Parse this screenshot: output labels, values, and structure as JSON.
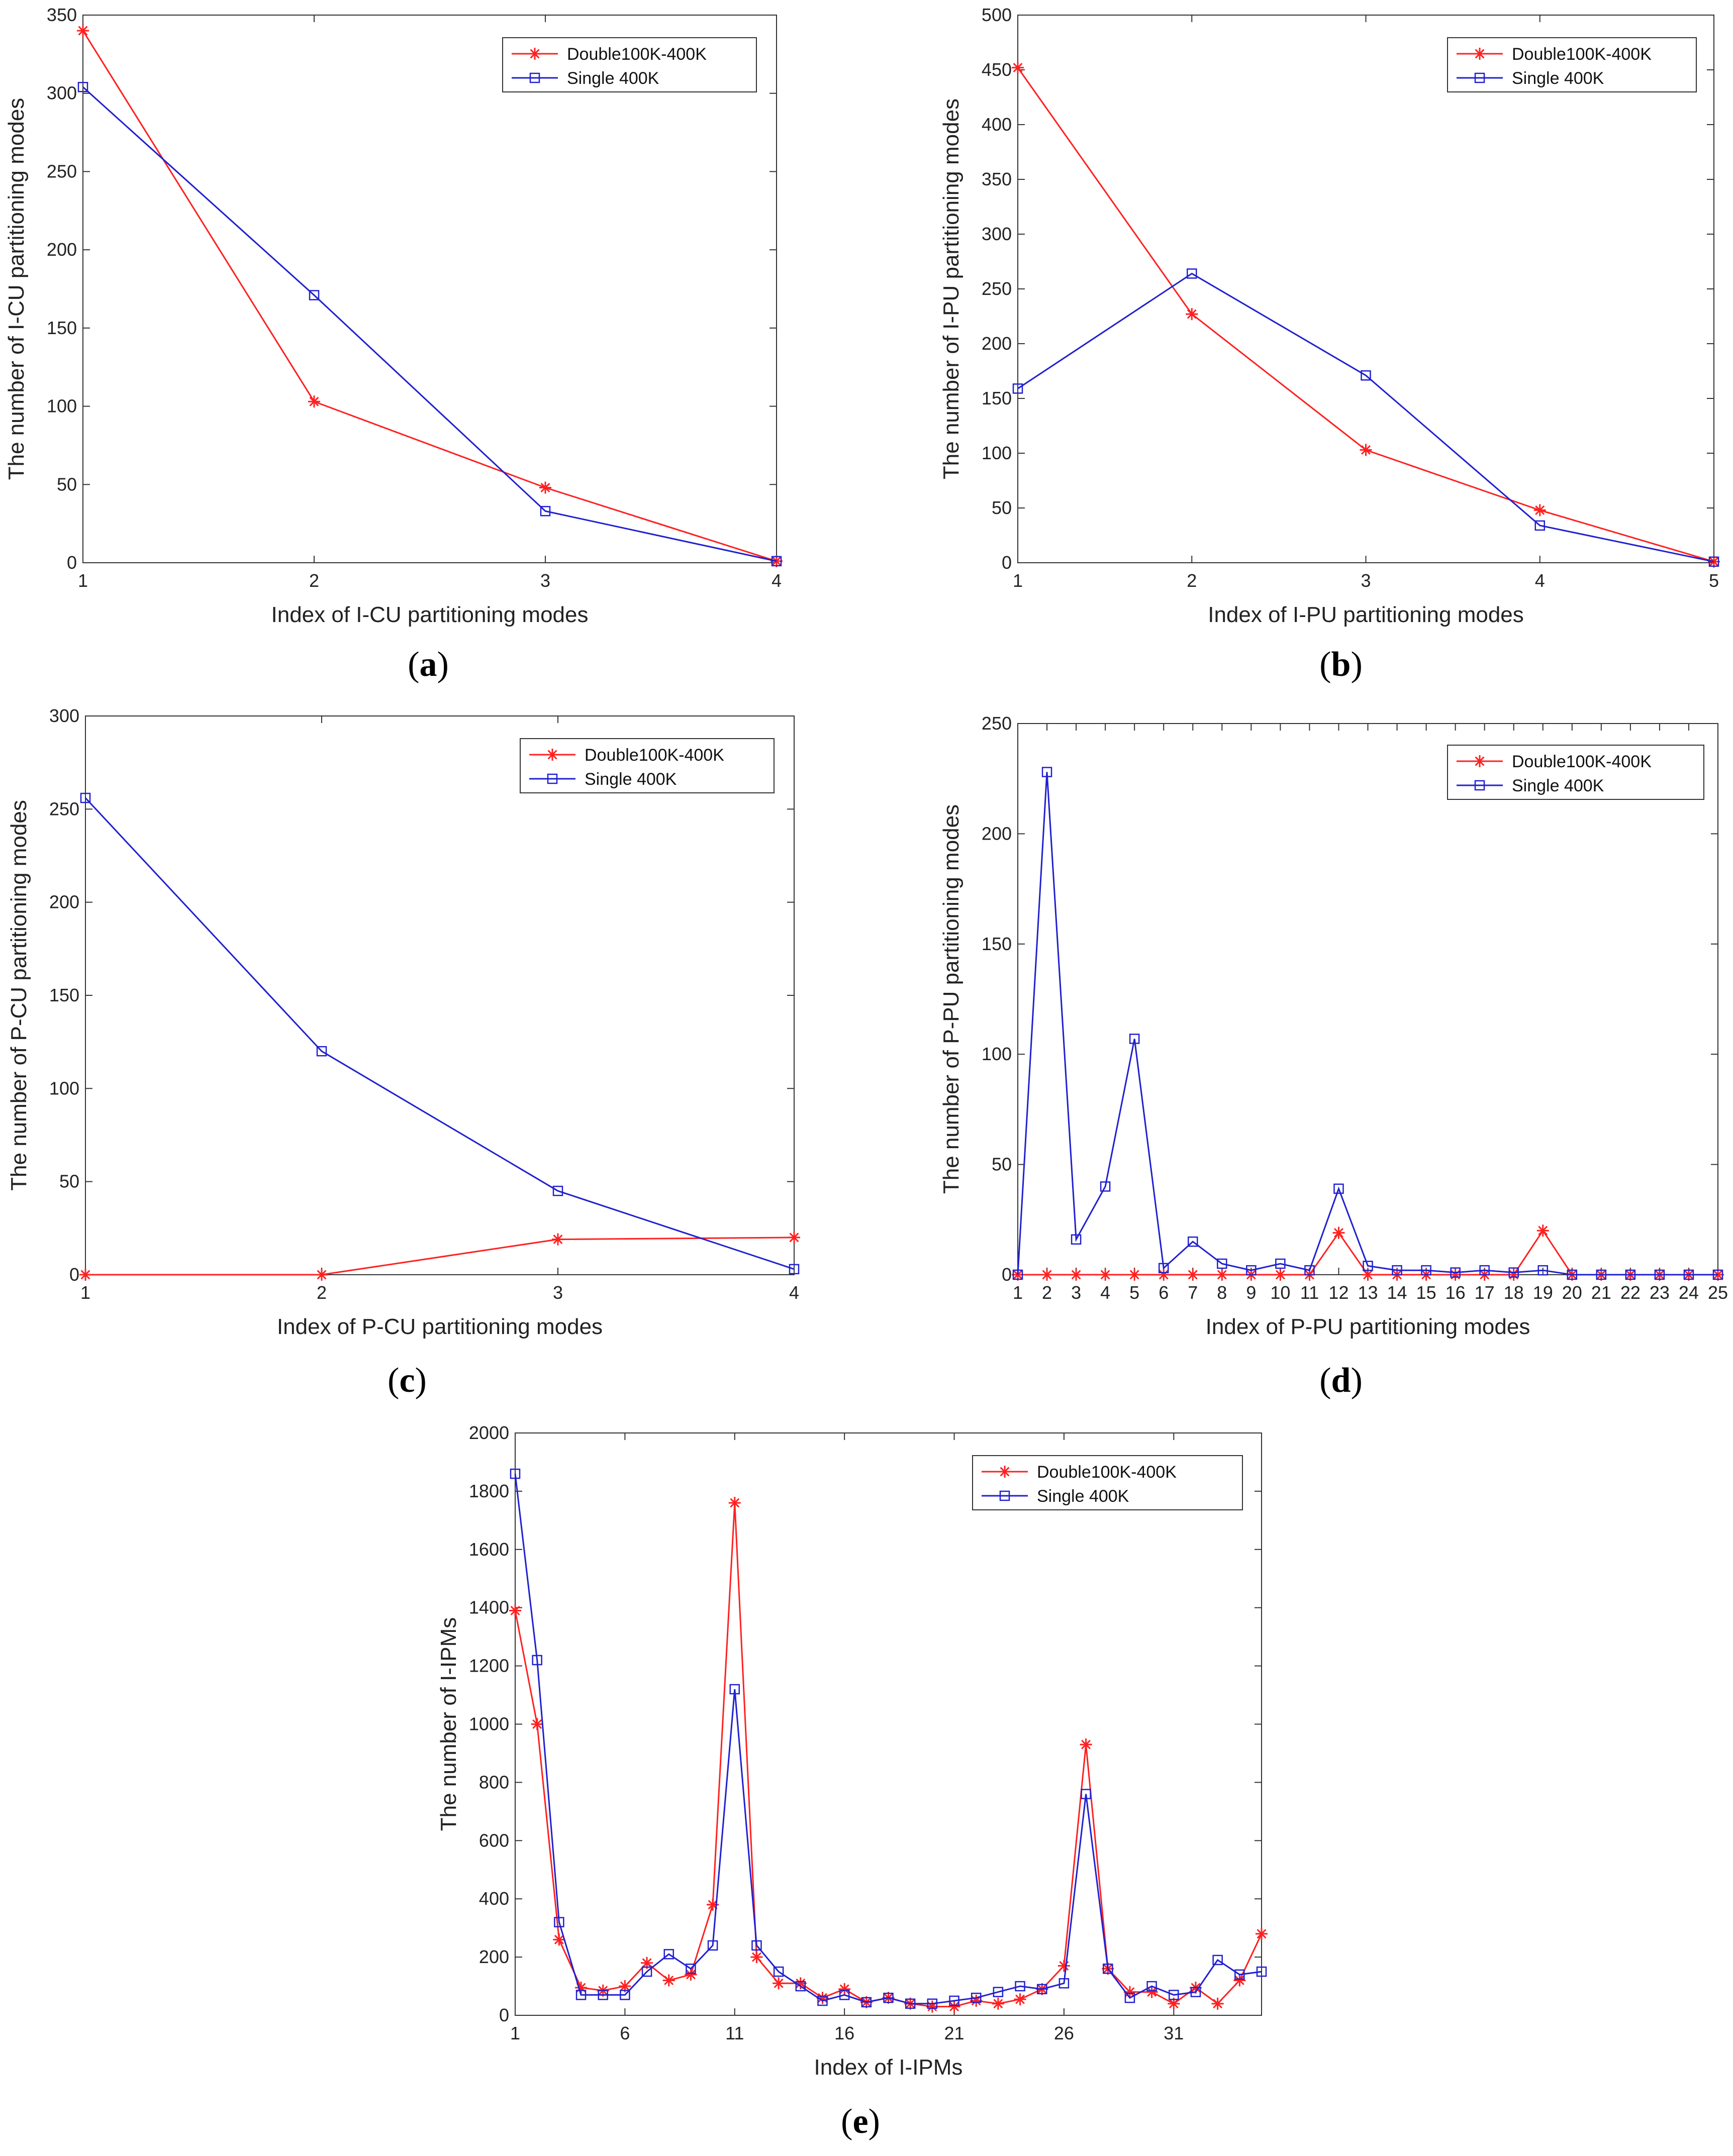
{
  "chart_data": [
    {
      "id": "a",
      "type": "line",
      "caption": "a",
      "xlabel": "Index of I-CU partitioning modes",
      "ylabel": "The number of I-CU partitioning modes",
      "xlim": [
        1,
        4
      ],
      "ylim": [
        0,
        350
      ],
      "xticks": [
        1,
        2,
        3,
        4
      ],
      "yticks": [
        0,
        50,
        100,
        150,
        200,
        250,
        300,
        350
      ],
      "legend": [
        "Double100K-400K",
        "Single 400K"
      ],
      "series": [
        {
          "name": "Double100K-400K",
          "color": "#ff2020",
          "marker": "star",
          "x": [
            1,
            2,
            3,
            4
          ],
          "values": [
            340,
            103,
            48,
            1
          ]
        },
        {
          "name": "Single 400K",
          "color": "#2020d0",
          "marker": "square",
          "x": [
            1,
            2,
            3,
            4
          ],
          "values": [
            304,
            171,
            33,
            1
          ]
        }
      ]
    },
    {
      "id": "b",
      "type": "line",
      "caption": "b",
      "xlabel": "Index of I-PU partitioning modes",
      "ylabel": "The number of I-PU partitioning modes",
      "xlim": [
        1,
        5
      ],
      "ylim": [
        0,
        500
      ],
      "xticks": [
        1,
        2,
        3,
        4,
        5
      ],
      "yticks": [
        0,
        50,
        100,
        150,
        200,
        250,
        300,
        350,
        400,
        450,
        500
      ],
      "legend": [
        "Double100K-400K",
        "Single 400K"
      ],
      "series": [
        {
          "name": "Double100K-400K",
          "color": "#ff2020",
          "marker": "star",
          "x": [
            1,
            2,
            3,
            4,
            5
          ],
          "values": [
            452,
            227,
            103,
            48,
            1
          ]
        },
        {
          "name": "Single 400K",
          "color": "#2020d0",
          "marker": "square",
          "x": [
            1,
            2,
            3,
            4,
            5
          ],
          "values": [
            159,
            264,
            171,
            34,
            1
          ]
        }
      ]
    },
    {
      "id": "c",
      "type": "line",
      "caption": "c",
      "xlabel": "Index of P-CU partitioning modes",
      "ylabel": "The number of P-CU partitioning modes",
      "xlim": [
        1,
        4
      ],
      "ylim": [
        0,
        300
      ],
      "xticks": [
        1,
        2,
        3,
        4
      ],
      "yticks": [
        0,
        50,
        100,
        150,
        200,
        250,
        300
      ],
      "legend": [
        "Double100K-400K",
        "Single 400K"
      ],
      "series": [
        {
          "name": "Double100K-400K",
          "color": "#ff2020",
          "marker": "star",
          "x": [
            1,
            2,
            3,
            4
          ],
          "values": [
            0,
            0,
            19,
            20
          ]
        },
        {
          "name": "Single 400K",
          "color": "#2020d0",
          "marker": "square",
          "x": [
            1,
            2,
            3,
            4
          ],
          "values": [
            256,
            120,
            45,
            3
          ]
        }
      ]
    },
    {
      "id": "d",
      "type": "line",
      "caption": "d",
      "xlabel": "Index of P-PU partitioning modes",
      "ylabel": "The number of P-PU partitioning modes",
      "xlim": [
        1,
        25
      ],
      "ylim": [
        0,
        250
      ],
      "xticks": [
        1,
        2,
        3,
        4,
        5,
        6,
        7,
        8,
        9,
        10,
        11,
        12,
        13,
        14,
        15,
        16,
        17,
        18,
        19,
        20,
        21,
        22,
        23,
        24,
        25
      ],
      "yticks": [
        0,
        50,
        100,
        150,
        200,
        250
      ],
      "legend": [
        "Double100K-400K",
        "Single 400K"
      ],
      "series": [
        {
          "name": "Double100K-400K",
          "color": "#ff2020",
          "marker": "star",
          "x": [
            1,
            2,
            3,
            4,
            5,
            6,
            7,
            8,
            9,
            10,
            11,
            12,
            13,
            14,
            15,
            16,
            17,
            18,
            19,
            20,
            21,
            22,
            23,
            24,
            25
          ],
          "values": [
            0,
            0,
            0,
            0,
            0,
            0,
            0,
            0,
            0,
            0,
            0,
            19,
            0,
            0,
            0,
            0,
            0,
            0,
            20,
            0,
            0,
            0,
            0,
            0,
            0
          ]
        },
        {
          "name": "Single 400K",
          "color": "#2020d0",
          "marker": "square",
          "x": [
            1,
            2,
            3,
            4,
            5,
            6,
            7,
            8,
            9,
            10,
            11,
            12,
            13,
            14,
            15,
            16,
            17,
            18,
            19,
            20,
            21,
            22,
            23,
            24,
            25
          ],
          "values": [
            0,
            228,
            16,
            40,
            107,
            3,
            15,
            5,
            2,
            5,
            2,
            39,
            4,
            2,
            2,
            1,
            2,
            1,
            2,
            0,
            0,
            0,
            0,
            0,
            0
          ]
        }
      ]
    },
    {
      "id": "e",
      "type": "line",
      "caption": "e",
      "xlabel": "Index of I-IPMs",
      "ylabel": "The number of I-IPMs",
      "xlim": [
        1,
        35
      ],
      "ylim": [
        0,
        2000
      ],
      "xticks": [
        1,
        6,
        11,
        16,
        21,
        26,
        31
      ],
      "yticks": [
        0,
        200,
        400,
        600,
        800,
        1000,
        1200,
        1400,
        1600,
        1800,
        2000
      ],
      "legend": [
        "Double100K-400K",
        "Single 400K"
      ],
      "series": [
        {
          "name": "Double100K-400K",
          "color": "#ff2020",
          "marker": "star",
          "x": [
            1,
            2,
            3,
            4,
            5,
            6,
            7,
            8,
            9,
            10,
            11,
            12,
            13,
            14,
            15,
            16,
            17,
            18,
            19,
            20,
            21,
            22,
            23,
            24,
            25,
            26,
            27,
            28,
            29,
            30,
            31,
            32,
            33,
            34,
            35
          ],
          "values": [
            1390,
            1000,
            260,
            95,
            85,
            100,
            180,
            120,
            140,
            380,
            1760,
            200,
            110,
            110,
            60,
            90,
            45,
            60,
            40,
            30,
            30,
            50,
            40,
            55,
            90,
            170,
            930,
            160,
            80,
            80,
            40,
            95,
            40,
            120,
            280
          ]
        },
        {
          "name": "Single 400K",
          "color": "#2020d0",
          "marker": "square",
          "x": [
            1,
            2,
            3,
            4,
            5,
            6,
            7,
            8,
            9,
            10,
            11,
            12,
            13,
            14,
            15,
            16,
            17,
            18,
            19,
            20,
            21,
            22,
            23,
            24,
            25,
            26,
            27,
            28,
            29,
            30,
            31,
            32,
            33,
            34,
            35
          ],
          "values": [
            1860,
            1220,
            320,
            70,
            70,
            70,
            150,
            210,
            160,
            240,
            1120,
            240,
            150,
            100,
            50,
            70,
            45,
            60,
            40,
            40,
            50,
            60,
            80,
            100,
            90,
            110,
            760,
            160,
            60,
            100,
            70,
            80,
            190,
            140,
            150
          ]
        }
      ]
    }
  ]
}
